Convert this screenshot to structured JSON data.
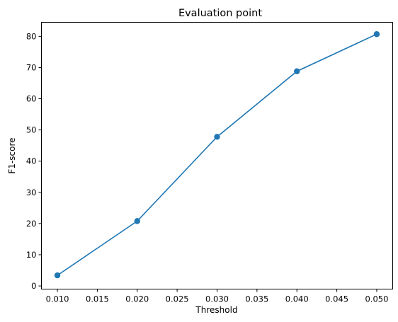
{
  "chart_data": {
    "type": "line",
    "title": "Evaluation point",
    "xlabel": "Threshold",
    "ylabel": "F1-score",
    "xlim": [
      0.008,
      0.052
    ],
    "ylim": [
      -1,
      84.5
    ],
    "x_ticks": [
      "0.010",
      "0.015",
      "0.020",
      "0.025",
      "0.030",
      "0.035",
      "0.040",
      "0.045",
      "0.050"
    ],
    "y_ticks": [
      "0",
      "10",
      "20",
      "30",
      "40",
      "50",
      "60",
      "70",
      "80"
    ],
    "grid": false,
    "series": [
      {
        "color": "#1f77b4",
        "marker": "circle",
        "points": [
          {
            "x": 0.01,
            "y": 3.4
          },
          {
            "x": 0.02,
            "y": 20.8
          },
          {
            "x": 0.03,
            "y": 47.8
          },
          {
            "x": 0.04,
            "y": 68.8
          },
          {
            "x": 0.05,
            "y": 80.7
          }
        ]
      }
    ]
  }
}
